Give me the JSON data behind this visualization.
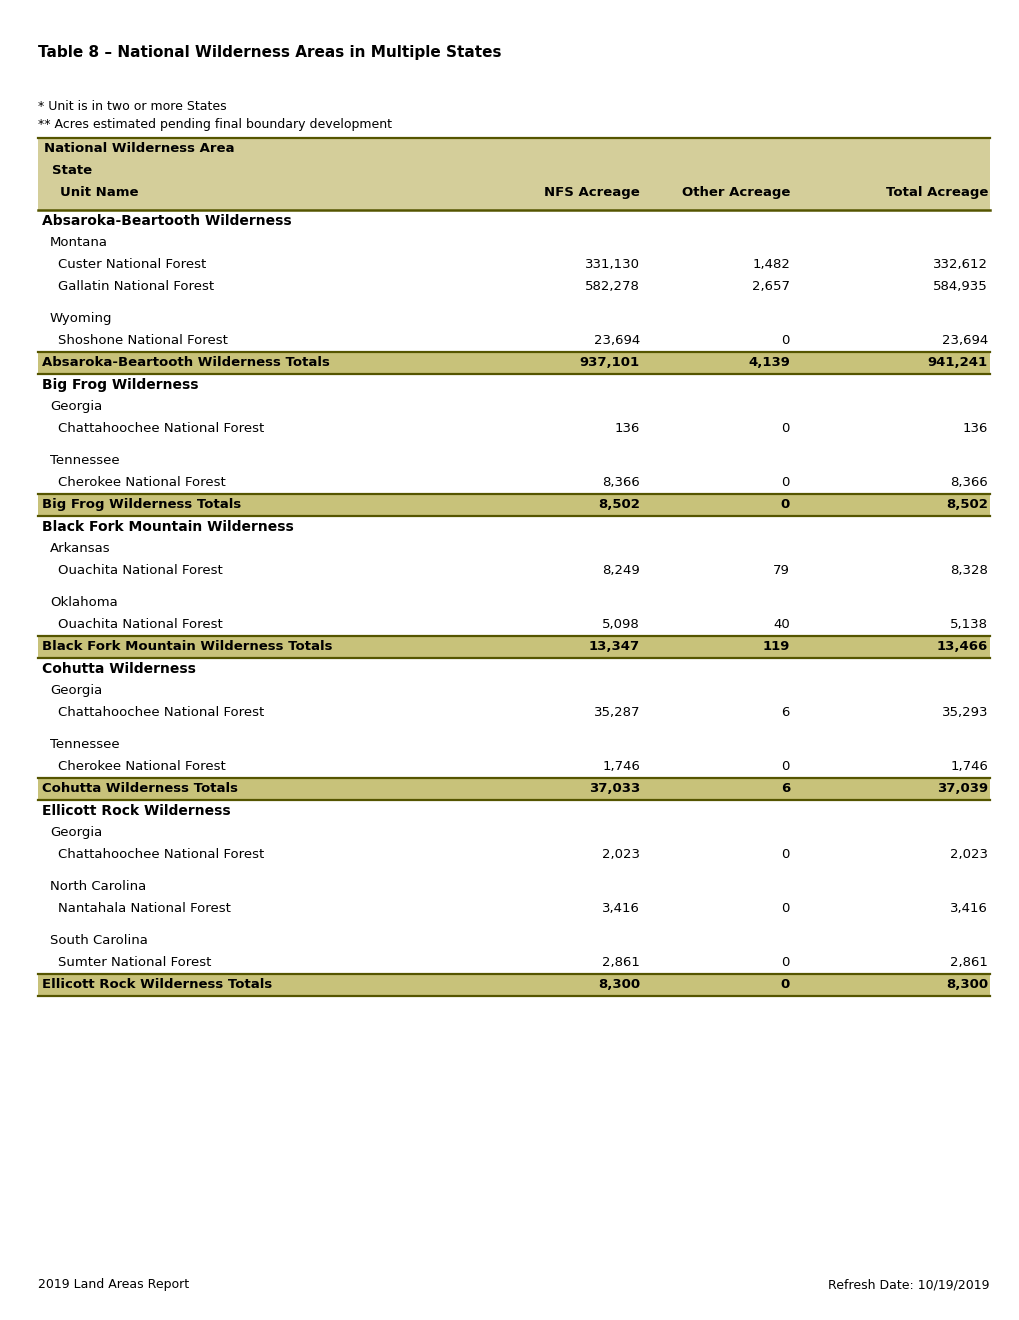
{
  "title": "Table 8 – National Wilderness Areas in Multiple States",
  "note1": "* Unit is in two or more States",
  "note2": "** Acres estimated pending final boundary development",
  "footer_left": "2019 Land Areas Report",
  "footer_right": "Refresh Date: 10/19/2019",
  "header_bg": "#d4ce9a",
  "total_bg": "#c8c27a",
  "white_bg": "#ffffff",
  "rows": [
    {
      "type": "wilderness",
      "text": "Absaroka-Beartooth Wilderness",
      "nfs": "",
      "other": "",
      "total": ""
    },
    {
      "type": "state",
      "text": "Montana",
      "nfs": "",
      "other": "",
      "total": ""
    },
    {
      "type": "unit",
      "text": "Custer National Forest",
      "nfs": "331,130",
      "other": "1,482",
      "total": "332,612"
    },
    {
      "type": "unit",
      "text": "Gallatin National Forest",
      "nfs": "582,278",
      "other": "2,657",
      "total": "584,935"
    },
    {
      "type": "gap",
      "text": "",
      "nfs": "",
      "other": "",
      "total": ""
    },
    {
      "type": "state",
      "text": "Wyoming",
      "nfs": "",
      "other": "",
      "total": ""
    },
    {
      "type": "unit",
      "text": "Shoshone National Forest",
      "nfs": "23,694",
      "other": "0",
      "total": "23,694"
    },
    {
      "type": "total",
      "text": "Absaroka-Beartooth Wilderness Totals",
      "nfs": "937,101",
      "other": "4,139",
      "total": "941,241"
    },
    {
      "type": "wilderness",
      "text": "Big Frog Wilderness",
      "nfs": "",
      "other": "",
      "total": ""
    },
    {
      "type": "state",
      "text": "Georgia",
      "nfs": "",
      "other": "",
      "total": ""
    },
    {
      "type": "unit",
      "text": "Chattahoochee National Forest",
      "nfs": "136",
      "other": "0",
      "total": "136"
    },
    {
      "type": "gap",
      "text": "",
      "nfs": "",
      "other": "",
      "total": ""
    },
    {
      "type": "state",
      "text": "Tennessee",
      "nfs": "",
      "other": "",
      "total": ""
    },
    {
      "type": "unit",
      "text": "Cherokee National Forest",
      "nfs": "8,366",
      "other": "0",
      "total": "8,366"
    },
    {
      "type": "total",
      "text": "Big Frog Wilderness Totals",
      "nfs": "8,502",
      "other": "0",
      "total": "8,502"
    },
    {
      "type": "wilderness",
      "text": "Black Fork Mountain Wilderness",
      "nfs": "",
      "other": "",
      "total": ""
    },
    {
      "type": "state",
      "text": "Arkansas",
      "nfs": "",
      "other": "",
      "total": ""
    },
    {
      "type": "unit",
      "text": "Ouachita National Forest",
      "nfs": "8,249",
      "other": "79",
      "total": "8,328"
    },
    {
      "type": "gap",
      "text": "",
      "nfs": "",
      "other": "",
      "total": ""
    },
    {
      "type": "state",
      "text": "Oklahoma",
      "nfs": "",
      "other": "",
      "total": ""
    },
    {
      "type": "unit",
      "text": "Ouachita National Forest",
      "nfs": "5,098",
      "other": "40",
      "total": "5,138"
    },
    {
      "type": "total",
      "text": "Black Fork Mountain Wilderness Totals",
      "nfs": "13,347",
      "other": "119",
      "total": "13,466"
    },
    {
      "type": "wilderness",
      "text": "Cohutta Wilderness",
      "nfs": "",
      "other": "",
      "total": ""
    },
    {
      "type": "state",
      "text": "Georgia",
      "nfs": "",
      "other": "",
      "total": ""
    },
    {
      "type": "unit",
      "text": "Chattahoochee National Forest",
      "nfs": "35,287",
      "other": "6",
      "total": "35,293"
    },
    {
      "type": "gap",
      "text": "",
      "nfs": "",
      "other": "",
      "total": ""
    },
    {
      "type": "state",
      "text": "Tennessee",
      "nfs": "",
      "other": "",
      "total": ""
    },
    {
      "type": "unit",
      "text": "Cherokee National Forest",
      "nfs": "1,746",
      "other": "0",
      "total": "1,746"
    },
    {
      "type": "total",
      "text": "Cohutta Wilderness Totals",
      "nfs": "37,033",
      "other": "6",
      "total": "37,039"
    },
    {
      "type": "wilderness",
      "text": "Ellicott Rock Wilderness",
      "nfs": "",
      "other": "",
      "total": ""
    },
    {
      "type": "state",
      "text": "Georgia",
      "nfs": "",
      "other": "",
      "total": ""
    },
    {
      "type": "unit",
      "text": "Chattahoochee National Forest",
      "nfs": "2,023",
      "other": "0",
      "total": "2,023"
    },
    {
      "type": "gap",
      "text": "",
      "nfs": "",
      "other": "",
      "total": ""
    },
    {
      "type": "state",
      "text": "North Carolina",
      "nfs": "",
      "other": "",
      "total": ""
    },
    {
      "type": "unit",
      "text": "Nantahala National Forest",
      "nfs": "3,416",
      "other": "0",
      "total": "3,416"
    },
    {
      "type": "gap",
      "text": "",
      "nfs": "",
      "other": "",
      "total": ""
    },
    {
      "type": "state",
      "text": "South Carolina",
      "nfs": "",
      "other": "",
      "total": ""
    },
    {
      "type": "unit",
      "text": "Sumter National Forest",
      "nfs": "2,861",
      "other": "0",
      "total": "2,861"
    },
    {
      "type": "total",
      "text": "Ellicott Rock Wilderness Totals",
      "nfs": "8,300",
      "other": "0",
      "total": "8,300"
    }
  ]
}
